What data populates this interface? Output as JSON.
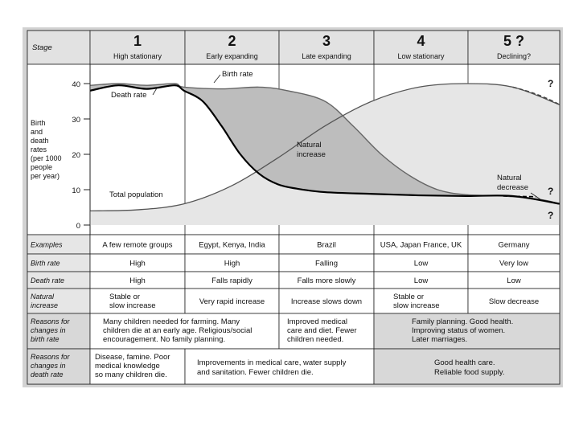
{
  "header": {
    "stage_label": "Stage",
    "stages": [
      {
        "number": "1",
        "name": "High stationary"
      },
      {
        "number": "2",
        "name": "Early expanding"
      },
      {
        "number": "3",
        "name": "Late expanding"
      },
      {
        "number": "4",
        "name": "Low stationary"
      },
      {
        "number": "5 ?",
        "name": "Declining?"
      }
    ]
  },
  "chart_data": {
    "type": "line",
    "ylabel": "Birth and death rates (per 1000 people per year)",
    "ylim": [
      0,
      42
    ],
    "yticks": [
      "40",
      "30",
      "20",
      "10",
      "0"
    ],
    "ylabel_lines": [
      "Birth",
      "and",
      "death",
      "rates",
      "(per 1000",
      "people",
      "per year)"
    ],
    "x_units": "stage position 0-5",
    "series": [
      {
        "name": "Birth rate",
        "x": [
          0,
          0.3,
          0.6,
          0.9,
          1.0,
          1.4,
          1.8,
          2.1,
          2.5,
          2.8,
          3.1,
          3.4,
          3.7,
          4.0,
          4.4,
          4.8,
          5.0
        ],
        "values": [
          39.5,
          40,
          39.5,
          40,
          39,
          38.5,
          39,
          38,
          35,
          28,
          20,
          14,
          10,
          8.6,
          8.2,
          7.2,
          6
        ]
      },
      {
        "name": "Death rate",
        "x": [
          0,
          0.3,
          0.6,
          0.9,
          1.0,
          1.2,
          1.4,
          1.6,
          1.8,
          2.0,
          2.2,
          2.5,
          3.0,
          3.5,
          4.0,
          4.5,
          5.0
        ],
        "values": [
          38,
          39.5,
          38.5,
          39.5,
          38,
          35,
          28,
          20,
          14.5,
          11.5,
          10.3,
          9.3,
          8.8,
          8.4,
          8.2,
          8.2,
          6
        ]
      },
      {
        "name": "Total population",
        "x": [
          0,
          0.5,
          1.0,
          1.5,
          2.0,
          2.5,
          3.0,
          3.5,
          4.0,
          4.5,
          5.0
        ],
        "values": [
          4,
          4.3,
          6,
          11,
          19,
          28,
          35,
          39,
          40,
          39,
          34
        ]
      }
    ],
    "annotations": [
      "Birth rate",
      "Death rate",
      "Total population",
      "Natural increase",
      "Natural decrease",
      "?"
    ],
    "natural_increase_lines": [
      "Natural",
      "increase"
    ],
    "natural_decrease_lines": [
      "Natural",
      "decrease"
    ],
    "question_mark": "?"
  },
  "rows": [
    {
      "label": "Examples",
      "cells": [
        "A few remote groups",
        "Egypt, Kenya, India",
        "Brazil",
        "USA, Japan France, UK",
        "Germany"
      ]
    },
    {
      "label": "Birth rate",
      "cells": [
        "High",
        "High",
        "Falling",
        "Low",
        "Very low"
      ]
    },
    {
      "label": "Death rate",
      "cells": [
        "High",
        "Falls rapidly",
        "Falls more slowly",
        "Low",
        "Low"
      ]
    },
    {
      "label": "Natural increase",
      "label_lines": [
        "Natural",
        "increase"
      ],
      "cells": [
        [
          "Stable or",
          "slow increase"
        ],
        [
          "Very rapid increase"
        ],
        [
          "Increase slows down"
        ],
        [
          "Stable or",
          "slow increase"
        ],
        [
          "Slow decrease"
        ]
      ]
    }
  ],
  "reasons_birth": {
    "label_lines": [
      "Reasons for",
      "changes in",
      "birth rate"
    ],
    "stage12": [
      "Many children needed for farming. Many",
      "children die at an early age. Religious/social",
      "encouragement. No family planning."
    ],
    "stage3": [
      "Improved medical",
      "care and diet. Fewer",
      "children needed."
    ],
    "stage45": [
      "Family planning. Good health.",
      "Improving status of women.",
      "Later marriages."
    ]
  },
  "reasons_death": {
    "label_lines": [
      "Reasons for",
      "changes in",
      "death rate"
    ],
    "stage1": [
      "Disease, famine. Poor",
      "medical knowledge",
      "so many children die."
    ],
    "stage23": [
      "Improvements in medical care, water supply",
      "and sanitation. Fewer children die."
    ],
    "stage45": [
      "Good health care.",
      "Reliable food supply."
    ]
  },
  "colors": {
    "shade": "#bdbdbd",
    "light": "#e6e6e6",
    "line": "#000000",
    "grid": "#333333"
  }
}
